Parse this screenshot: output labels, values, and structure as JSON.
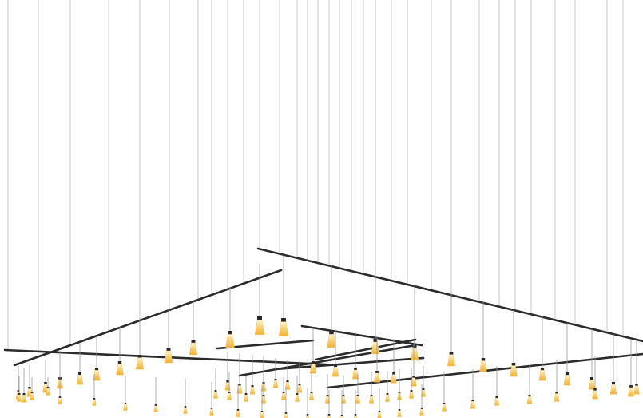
{
  "image": {
    "subject": "pendant-light-installation",
    "background_color": "#ffffff",
    "wire_color": "#b9b9b9",
    "rail_color": "#2b2b2b",
    "shade_glow_color": "#f6c24a",
    "shade_highlight_color": "#fff6d8",
    "cap_color": "#2a2a2a"
  }
}
